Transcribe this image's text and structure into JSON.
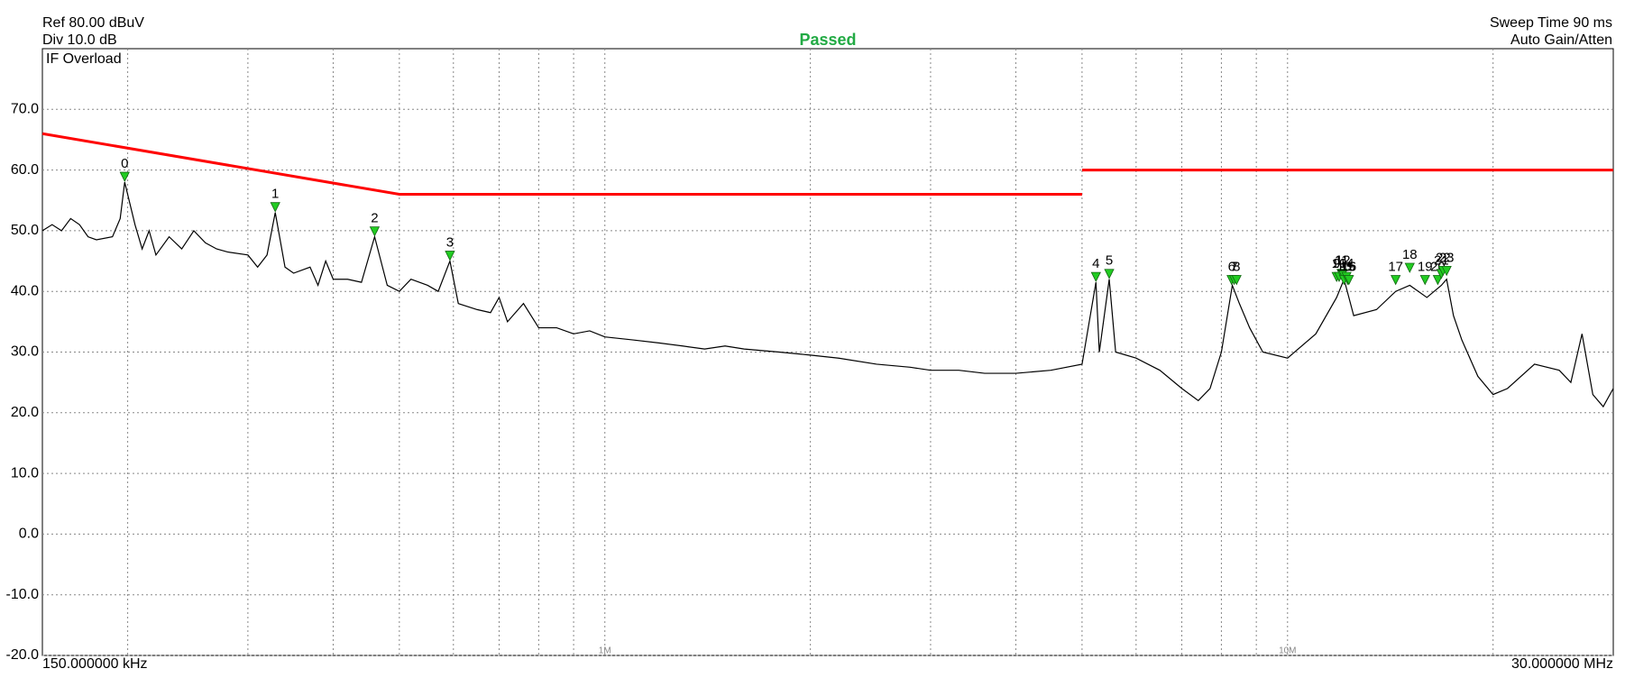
{
  "header": {
    "ref": "Ref 80.00 dBuV",
    "div": "Div 10.0 dB",
    "status": "Passed",
    "sweep": "Sweep Time 90 ms",
    "gain": "Auto Gain/Atten",
    "overload": "IF Overload"
  },
  "chart_data": {
    "type": "line",
    "log_x": true,
    "grid": true,
    "xlim": [
      0.15,
      30
    ],
    "ylim": [
      -20,
      80
    ],
    "xticks": [
      {
        "value": 0.15,
        "label": "150.000000 kHz"
      },
      {
        "value": 1,
        "label": "1M"
      },
      {
        "value": 10,
        "label": "10M"
      },
      {
        "value": 30,
        "label": "30.000000 MHz"
      }
    ],
    "xgrid": [
      0.2,
      0.3,
      0.4,
      0.5,
      0.6,
      0.7,
      0.8,
      0.9,
      2,
      3,
      4,
      5,
      6,
      7,
      8,
      9,
      20
    ],
    "yticks": [
      {
        "value": -20,
        "label": "-20.0"
      },
      {
        "value": -10,
        "label": "-10.0"
      },
      {
        "value": 0,
        "label": "0.0"
      },
      {
        "value": 10,
        "label": "10.0"
      },
      {
        "value": 20,
        "label": "20.0"
      },
      {
        "value": 30,
        "label": "30.0"
      },
      {
        "value": 40,
        "label": "40.0"
      },
      {
        "value": 50,
        "label": "50.0"
      },
      {
        "value": 60,
        "label": "60.0"
      },
      {
        "value": 70,
        "label": "70.0"
      }
    ],
    "series": [
      {
        "color": "#000000",
        "x": [
          0.15,
          0.155,
          0.16,
          0.165,
          0.17,
          0.175,
          0.18,
          0.19,
          0.195,
          0.198,
          0.205,
          0.21,
          0.215,
          0.22,
          0.23,
          0.24,
          0.25,
          0.26,
          0.27,
          0.28,
          0.3,
          0.31,
          0.32,
          0.329,
          0.34,
          0.35,
          0.37,
          0.38,
          0.39,
          0.4,
          0.42,
          0.44,
          0.46,
          0.48,
          0.5,
          0.52,
          0.55,
          0.57,
          0.593,
          0.61,
          0.65,
          0.68,
          0.7,
          0.72,
          0.76,
          0.8,
          0.85,
          0.9,
          0.95,
          1,
          1.1,
          1.2,
          1.3,
          1.4,
          1.5,
          1.6,
          1.8,
          2,
          2.2,
          2.5,
          2.8,
          3,
          3.3,
          3.6,
          4,
          4.5,
          5,
          5.24,
          5.3,
          5.48,
          5.6,
          6,
          6.5,
          7,
          7.4,
          7.7,
          8,
          8.3,
          8.5,
          8.8,
          9.2,
          10,
          11,
          11.8,
          12.1,
          12.5,
          13.5,
          14.4,
          15.1,
          16,
          16.8,
          17.1,
          17.5,
          18,
          19,
          20,
          21,
          23,
          25,
          26,
          27,
          28,
          29,
          30
        ],
        "values": [
          50,
          51,
          50,
          52,
          51,
          49,
          48.5,
          49,
          52,
          58,
          51,
          47,
          50,
          46,
          49,
          47,
          50,
          48,
          47,
          46.5,
          46,
          44,
          46,
          53,
          44,
          43,
          44,
          41,
          45,
          42,
          42,
          41.5,
          49,
          41,
          40,
          42,
          41,
          40,
          45,
          38,
          37,
          36.5,
          39,
          35,
          38,
          34,
          34,
          33,
          33.5,
          32.5,
          32,
          31.5,
          31,
          30.5,
          31,
          30.5,
          30,
          29.5,
          29,
          28,
          27.5,
          27,
          27,
          26.5,
          26.5,
          27,
          28,
          41.5,
          30,
          42,
          30,
          29,
          27,
          24,
          22,
          24,
          30,
          41,
          38,
          34,
          30,
          29,
          33,
          39,
          42,
          36,
          37,
          40,
          41,
          39,
          41,
          42,
          36,
          32,
          26,
          23,
          24,
          28,
          27,
          25,
          33,
          23,
          21,
          24
        ]
      },
      {
        "color": "#ff0000",
        "x": [
          0.15,
          0.5,
          5,
          5,
          5,
          30
        ],
        "values": [
          66,
          56,
          56,
          null,
          60,
          60
        ]
      }
    ],
    "markers": {
      "color": "#22cc22",
      "labels": [
        "0",
        "1",
        "2",
        "3",
        "4",
        "5",
        "6",
        "7",
        "8",
        "9",
        "10",
        "11",
        "12",
        "13",
        "14",
        "15",
        "16",
        "17",
        "18",
        "19",
        "20",
        "21",
        "22",
        "23"
      ],
      "x": [
        0.198,
        0.329,
        0.46,
        0.593,
        5.24,
        5.48,
        8.28,
        8.35,
        8.42,
        11.8,
        11.9,
        12.0,
        12.05,
        12.1,
        12.2,
        12.25,
        12.3,
        14.4,
        15.1,
        15.9,
        16.6,
        16.8,
        16.9,
        17.1
      ],
      "values": [
        58,
        53,
        49,
        45,
        41.5,
        42,
        41,
        41,
        41,
        41.5,
        41.5,
        42,
        42,
        41,
        41.5,
        41,
        41,
        41,
        43,
        41,
        41,
        42,
        42.5,
        42.5
      ]
    }
  }
}
